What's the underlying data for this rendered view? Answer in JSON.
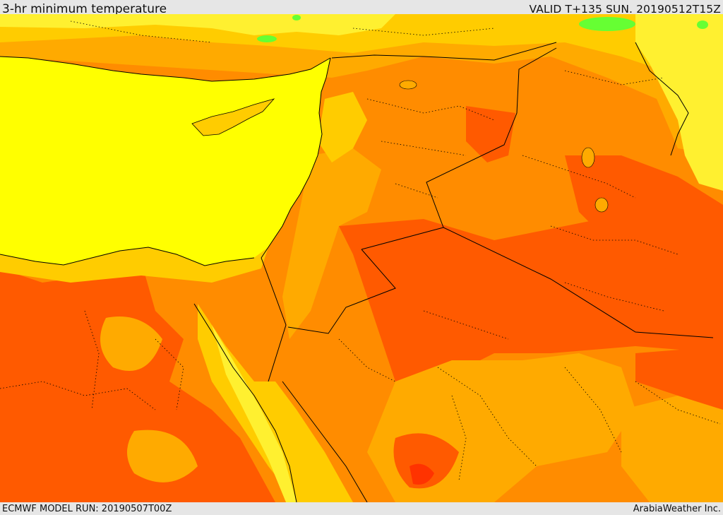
{
  "header": {
    "title": "3-hr minimum temperature",
    "valid_time": "VALID T+135 SUN. 20190512T15Z"
  },
  "footer": {
    "model_run": "ECMWF MODEL RUN: 20190507T00Z",
    "credit": "ArabiaWeather Inc."
  },
  "colors": {
    "sea": "#ffff00",
    "pale_yellow": "#fff030",
    "light_orange": "#ffcc00",
    "amber": "#ffaa00",
    "orange": "#ff8c00",
    "dark_orange": "#ff5a00",
    "red_orange": "#ff3300",
    "green": "#66ff33",
    "border_line": "#000000"
  }
}
